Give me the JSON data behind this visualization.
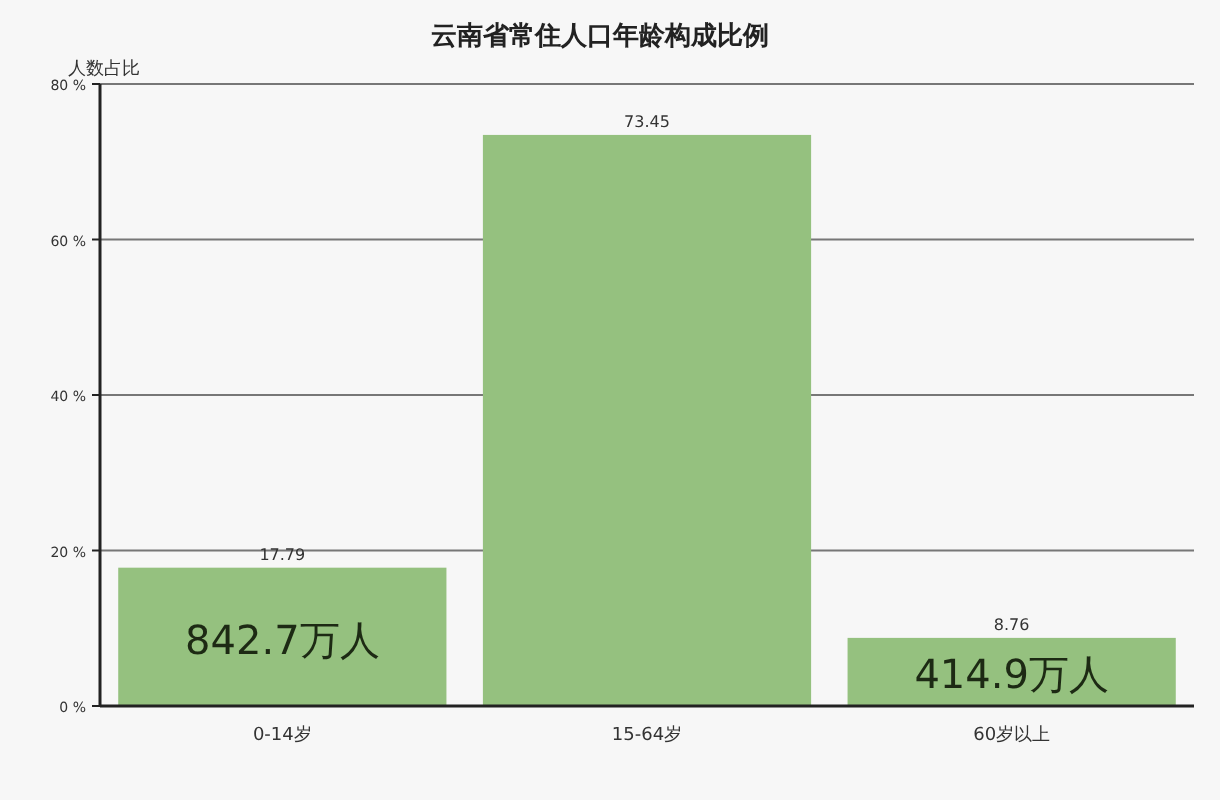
{
  "chart_data": {
    "type": "bar",
    "title": "云南省常住人口年龄构成比例",
    "ylabel": "人数占比",
    "categories": [
      "0-14岁",
      "15-64岁",
      "60岁以上"
    ],
    "values": [
      17.79,
      73.45,
      8.76
    ],
    "color": "#95c17f",
    "data_labels": true,
    "ylim": [
      0,
      80
    ],
    "yticks": [
      {
        "value": 0,
        "label": "0 %"
      },
      {
        "value": 20,
        "label": "20 %"
      },
      {
        "value": 40,
        "label": "40 %"
      },
      {
        "value": 60,
        "label": "60 %"
      },
      {
        "value": 80,
        "label": "80 %"
      }
    ],
    "grid": "y",
    "annotations": [
      "842.7万人",
      "414.9万人"
    ]
  }
}
